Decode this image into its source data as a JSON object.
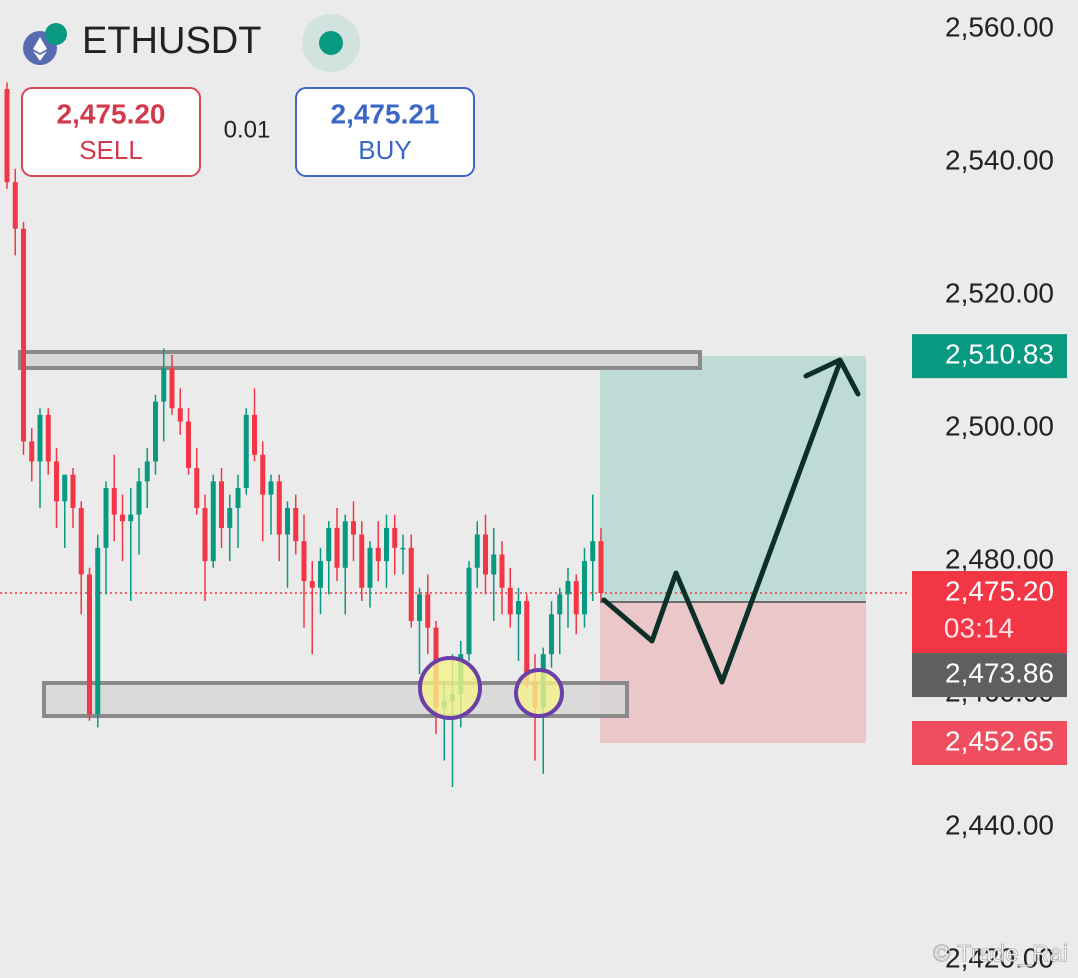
{
  "header": {
    "symbol": "ETHUSDT",
    "sell": {
      "price": "2,475.20",
      "label": "SELL"
    },
    "spread": "0.01",
    "buy": {
      "price": "2,475.21",
      "label": "BUY"
    }
  },
  "chart_data": {
    "type": "candlestick",
    "ohlc": [
      [
        2551,
        2552,
        2536,
        2537
      ],
      [
        2537,
        2539,
        2526,
        2530
      ],
      [
        2530,
        2531,
        2496,
        2498
      ],
      [
        2498,
        2500,
        2492,
        2495
      ],
      [
        2495,
        2503,
        2488,
        2502
      ],
      [
        2502,
        2503,
        2493,
        2495
      ],
      [
        2495,
        2497,
        2485,
        2489
      ],
      [
        2489,
        2493,
        2482,
        2493
      ],
      [
        2493,
        2494,
        2485,
        2488
      ],
      [
        2488,
        2489,
        2472,
        2478
      ],
      [
        2478,
        2479,
        2456,
        2457
      ],
      [
        2457,
        2484,
        2455,
        2482
      ],
      [
        2482,
        2492,
        2475,
        2491
      ],
      [
        2491,
        2496,
        2483,
        2487
      ],
      [
        2487,
        2490,
        2480,
        2486
      ],
      [
        2486,
        2491,
        2474,
        2487
      ],
      [
        2487,
        2494,
        2481,
        2492
      ],
      [
        2492,
        2497,
        2488,
        2495
      ],
      [
        2495,
        2505,
        2493,
        2504
      ],
      [
        2504,
        2512,
        2498,
        2509
      ],
      [
        2509,
        2511,
        2502,
        2503
      ],
      [
        2503,
        2506,
        2499,
        2501
      ],
      [
        2501,
        2503,
        2493,
        2494
      ],
      [
        2494,
        2497,
        2487,
        2488
      ],
      [
        2488,
        2490,
        2474,
        2480
      ],
      [
        2480,
        2493,
        2479,
        2492
      ],
      [
        2492,
        2494,
        2482,
        2485
      ],
      [
        2485,
        2490,
        2480,
        2488
      ],
      [
        2488,
        2493,
        2482,
        2491
      ],
      [
        2491,
        2503,
        2490,
        2502
      ],
      [
        2502,
        2506,
        2495,
        2496
      ],
      [
        2496,
        2498,
        2483,
        2490
      ],
      [
        2490,
        2493,
        2484,
        2492
      ],
      [
        2492,
        2493,
        2480,
        2484
      ],
      [
        2484,
        2489,
        2476,
        2488
      ],
      [
        2488,
        2490,
        2481,
        2483
      ],
      [
        2483,
        2487,
        2470,
        2477
      ],
      [
        2477,
        2480,
        2466,
        2476
      ],
      [
        2476,
        2482,
        2472,
        2480
      ],
      [
        2480,
        2486,
        2475,
        2485
      ],
      [
        2485,
        2488,
        2477,
        2479
      ],
      [
        2479,
        2487,
        2472,
        2486
      ],
      [
        2486,
        2489,
        2480,
        2484
      ],
      [
        2484,
        2486,
        2474,
        2476
      ],
      [
        2476,
        2483,
        2473,
        2482
      ],
      [
        2482,
        2486,
        2477,
        2480
      ],
      [
        2480,
        2487,
        2476,
        2485
      ],
      [
        2485,
        2487,
        2478,
        2482
      ],
      [
        2482,
        2484,
        2478,
        2482
      ],
      [
        2482,
        2484,
        2470,
        2471
      ],
      [
        2471,
        2476,
        2463,
        2475
      ],
      [
        2475,
        2478,
        2466,
        2470
      ],
      [
        2470,
        2471,
        2454,
        2458
      ],
      [
        2458,
        2462,
        2450,
        2459
      ],
      [
        2459,
        2466,
        2446,
        2460
      ],
      [
        2460,
        2468,
        2455,
        2466
      ],
      [
        2466,
        2480,
        2465,
        2479
      ],
      [
        2479,
        2486,
        2476,
        2484
      ],
      [
        2484,
        2487,
        2475,
        2478
      ],
      [
        2478,
        2485,
        2471,
        2481
      ],
      [
        2481,
        2483,
        2472,
        2476
      ],
      [
        2476,
        2479,
        2470,
        2472
      ],
      [
        2472,
        2476,
        2465,
        2474
      ],
      [
        2474,
        2475,
        2461,
        2462
      ],
      [
        2462,
        2466,
        2450,
        2458
      ],
      [
        2458,
        2467,
        2448,
        2466
      ],
      [
        2466,
        2474,
        2464,
        2472
      ],
      [
        2472,
        2476,
        2466,
        2475
      ],
      [
        2475,
        2479,
        2470,
        2477
      ],
      [
        2477,
        2478,
        2469,
        2472
      ],
      [
        2472,
        2482,
        2470,
        2480
      ],
      [
        2480,
        2490,
        2474,
        2483
      ],
      [
        2483,
        2485,
        2474,
        2475.2
      ]
    ],
    "colors": {
      "up": "#089981",
      "down": "#f23645"
    },
    "ylim": [
      2417.3,
      2564.4
    ],
    "yticks": [
      {
        "value": 2560,
        "label": "2,560.00"
      },
      {
        "value": 2540,
        "label": "2,540.00"
      },
      {
        "value": 2520,
        "label": "2,520.00"
      },
      {
        "value": 2500,
        "label": "2,500.00"
      },
      {
        "value": 2480,
        "label": "2,480.00"
      },
      {
        "value": 2460,
        "label": "2,460.00"
      },
      {
        "value": 2440,
        "label": "2,440.00"
      },
      {
        "value": 2420,
        "label": "2,420.00"
      }
    ],
    "current_price": {
      "value": 2475.2,
      "label": "2,475.20"
    },
    "countdown": "03:14",
    "position": {
      "target": {
        "value": 2510.83,
        "label": "2,510.83"
      },
      "entry": {
        "value": 2473.86,
        "label": "2,473.86"
      },
      "stop": {
        "value": 2452.65,
        "label": "2,452.65"
      }
    }
  },
  "watermark": "© Trade_Rai"
}
